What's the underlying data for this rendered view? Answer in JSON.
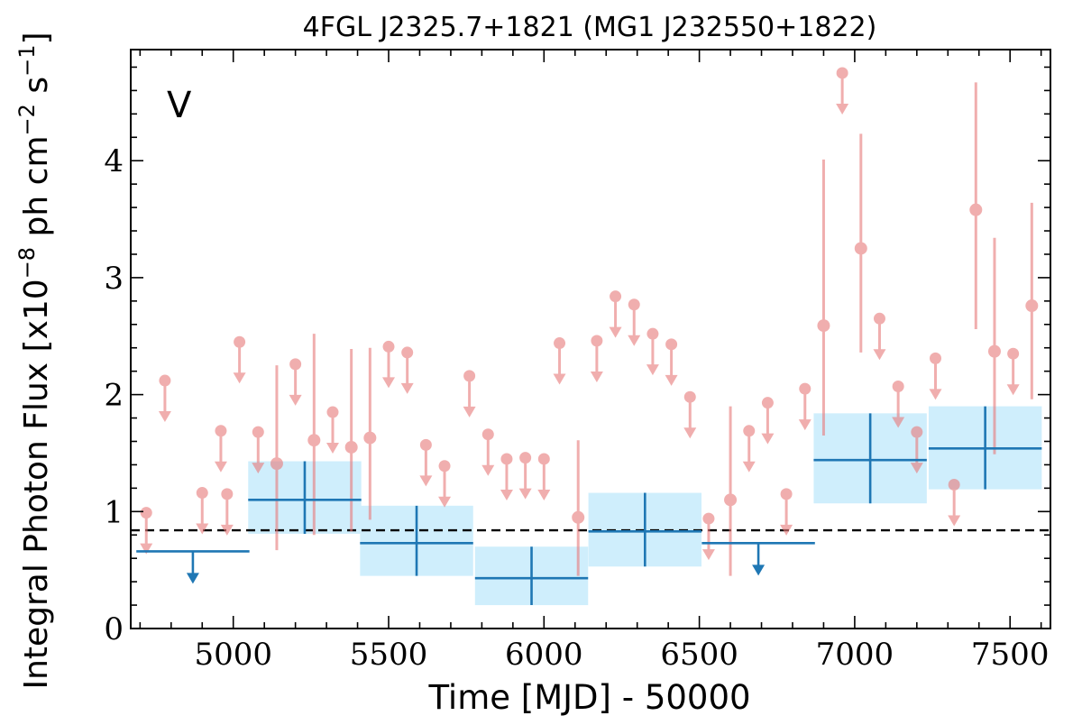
{
  "chart_data": {
    "type": "scatter",
    "title": "4FGL J2325.7+1821 (MG1 J232550+1822)",
    "xlabel": "Time [MJD] - 50000",
    "ylabel": "Integral Photon Flux [x10^-8 ph cm^-2 s^-1]",
    "ylabel_parts": {
      "base": "Integral Photon Flux [x10",
      "exp1": "−8",
      "mid": " ph cm",
      "exp2": "−2",
      "mid2": " s",
      "exp3": "−1",
      "end": "]"
    },
    "panel_label": "V",
    "xlim": [
      4670,
      7630
    ],
    "ylim": [
      0,
      4.95
    ],
    "xticks": [
      5000,
      5500,
      6000,
      6500,
      7000,
      7500
    ],
    "yticks": [
      0,
      1,
      2,
      3,
      4
    ],
    "reference_level": 0.84,
    "colors": {
      "fine": "#e87d7d",
      "coarse": "#1f77b4",
      "band": "#cfeefc",
      "reference": "#000000"
    },
    "series": [
      {
        "name": "",
        "binning": "fine",
        "points": [
          {
            "x": 4720,
            "y": 0.99,
            "ul": true
          },
          {
            "x": 4780,
            "y": 2.12,
            "ul": true
          },
          {
            "x": 4900,
            "y": 1.16,
            "ul": true
          },
          {
            "x": 4960,
            "y": 1.69,
            "ul": true
          },
          {
            "x": 4980,
            "y": 1.15,
            "ul": true
          },
          {
            "x": 5020,
            "y": 2.45,
            "ul": true
          },
          {
            "x": 5080,
            "y": 1.68,
            "ul": true
          },
          {
            "x": 5140,
            "y": 1.41,
            "ul": false,
            "err_low": 0.74,
            "err_high": 0.84
          },
          {
            "x": 5200,
            "y": 2.26,
            "ul": true
          },
          {
            "x": 5260,
            "y": 1.61,
            "ul": false,
            "err_low": 0.81,
            "err_high": 0.91
          },
          {
            "x": 5320,
            "y": 1.85,
            "ul": true
          },
          {
            "x": 5380,
            "y": 1.55,
            "ul": false,
            "err_low": 0.72,
            "err_high": 0.84
          },
          {
            "x": 5440,
            "y": 1.63,
            "ul": false,
            "err_low": 0.7,
            "err_high": 0.77
          },
          {
            "x": 5500,
            "y": 2.41,
            "ul": true
          },
          {
            "x": 5560,
            "y": 2.36,
            "ul": true
          },
          {
            "x": 5620,
            "y": 1.57,
            "ul": true
          },
          {
            "x": 5680,
            "y": 1.39,
            "ul": true
          },
          {
            "x": 5760,
            "y": 2.16,
            "ul": true
          },
          {
            "x": 5820,
            "y": 1.66,
            "ul": true
          },
          {
            "x": 5880,
            "y": 1.45,
            "ul": true
          },
          {
            "x": 5940,
            "y": 1.46,
            "ul": true
          },
          {
            "x": 6000,
            "y": 1.45,
            "ul": true
          },
          {
            "x": 6050,
            "y": 2.44,
            "ul": true
          },
          {
            "x": 6110,
            "y": 0.95,
            "ul": false,
            "err_low": 0.5,
            "err_high": 0.66
          },
          {
            "x": 6170,
            "y": 2.46,
            "ul": true
          },
          {
            "x": 6230,
            "y": 2.84,
            "ul": true
          },
          {
            "x": 6290,
            "y": 2.77,
            "ul": true
          },
          {
            "x": 6350,
            "y": 2.52,
            "ul": true
          },
          {
            "x": 6410,
            "y": 2.43,
            "ul": true
          },
          {
            "x": 6470,
            "y": 1.98,
            "ul": true
          },
          {
            "x": 6530,
            "y": 0.94,
            "ul": true
          },
          {
            "x": 6600,
            "y": 1.1,
            "ul": false,
            "err_low": 0.65,
            "err_high": 0.8
          },
          {
            "x": 6660,
            "y": 1.69,
            "ul": true
          },
          {
            "x": 6720,
            "y": 1.93,
            "ul": true
          },
          {
            "x": 6780,
            "y": 1.15,
            "ul": true
          },
          {
            "x": 6840,
            "y": 2.05,
            "ul": true
          },
          {
            "x": 6900,
            "y": 2.59,
            "ul": false,
            "err_low": 0.94,
            "err_high": 1.42
          },
          {
            "x": 6960,
            "y": 4.75,
            "ul": true
          },
          {
            "x": 7020,
            "y": 3.25,
            "ul": false,
            "err_low": 0.89,
            "err_high": 0.98
          },
          {
            "x": 7080,
            "y": 2.65,
            "ul": true
          },
          {
            "x": 7140,
            "y": 2.07,
            "ul": true
          },
          {
            "x": 7200,
            "y": 1.68,
            "ul": true
          },
          {
            "x": 7260,
            "y": 2.31,
            "ul": true
          },
          {
            "x": 7320,
            "y": 1.23,
            "ul": true
          },
          {
            "x": 7390,
            "y": 3.58,
            "ul": false,
            "err_low": 1.02,
            "err_high": 1.09
          },
          {
            "x": 7450,
            "y": 2.37,
            "ul": false,
            "err_low": 0.88,
            "err_high": 0.97
          },
          {
            "x": 7510,
            "y": 2.35,
            "ul": true
          },
          {
            "x": 7570,
            "y": 2.76,
            "ul": false,
            "err_low": 0.8,
            "err_high": 0.88
          }
        ]
      },
      {
        "name": "",
        "binning": "coarse",
        "points": [
          {
            "x": 4870,
            "y": 0.66,
            "xerr": 182,
            "ul": true
          },
          {
            "x": 5230,
            "y": 1.1,
            "xerr": 182,
            "ul": false,
            "err_low": 0.29,
            "err_high": 0.33
          },
          {
            "x": 5590,
            "y": 0.73,
            "xerr": 182,
            "ul": false,
            "err_low": 0.28,
            "err_high": 0.32
          },
          {
            "x": 5960,
            "y": 0.43,
            "xerr": 182,
            "ul": false,
            "err_low": 0.23,
            "err_high": 0.27
          },
          {
            "x": 6325,
            "y": 0.83,
            "xerr": 182,
            "ul": false,
            "err_low": 0.3,
            "err_high": 0.33
          },
          {
            "x": 6690,
            "y": 0.73,
            "xerr": 182,
            "ul": true
          },
          {
            "x": 7050,
            "y": 1.44,
            "xerr": 182,
            "ul": false,
            "err_low": 0.37,
            "err_high": 0.4
          },
          {
            "x": 7420,
            "y": 1.54,
            "xerr": 182,
            "ul": false,
            "err_low": 0.35,
            "err_high": 0.36
          }
        ]
      }
    ]
  }
}
